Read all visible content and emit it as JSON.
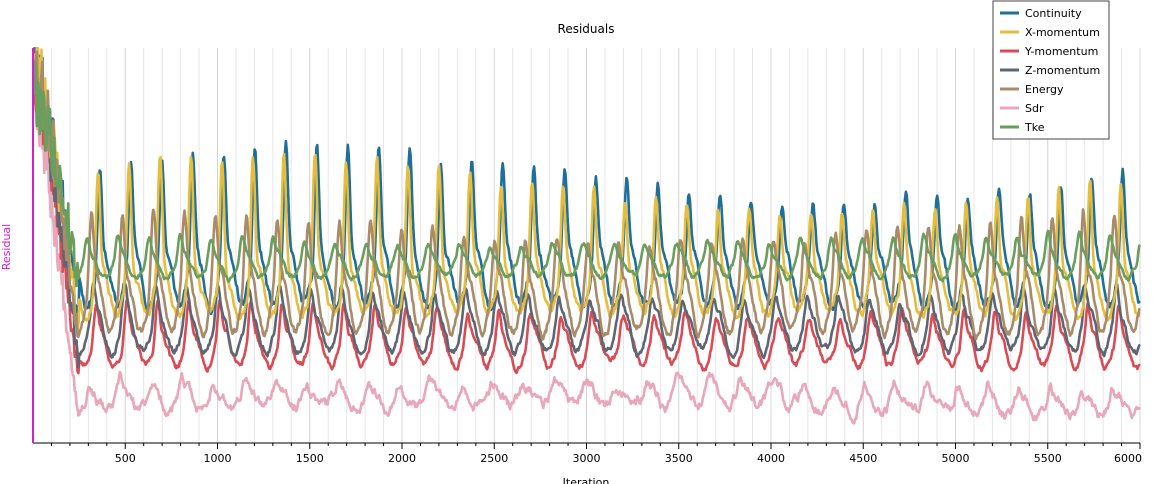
{
  "chart_data": {
    "type": "line",
    "title": "Residuals",
    "xlabel": "Iteration",
    "ylabel": "Residual",
    "xlim": [
      0,
      6000
    ],
    "x_ticks": [
      500,
      1000,
      1500,
      2000,
      2500,
      3000,
      3500,
      4000,
      4500,
      5000,
      5500,
      6000
    ],
    "ylim": [
      0,
      1
    ],
    "y_scale": "log",
    "grid": "vertical",
    "legend_position": "top-right",
    "colors": {
      "y_axis": "#d020d0",
      "grid": "#e6e6e6"
    },
    "series": [
      {
        "name": "Continuity",
        "color": "#1f6f99",
        "base": 0.42,
        "amp": 0.14,
        "pulse": 0.2,
        "drift": 0.0,
        "phase": 0.0,
        "noise": 0.025,
        "seed": 11,
        "start": 0.98,
        "head": [
          0.78,
          0.7,
          0.6,
          0.52,
          0.46,
          0.4,
          0.38,
          0.34,
          0.3
        ]
      },
      {
        "name": "X-momentum",
        "color": "#e6bd3c",
        "base": 0.38,
        "amp": 0.12,
        "pulse": 0.22,
        "drift": 0.01,
        "phase": 0.25,
        "noise": 0.025,
        "seed": 23,
        "start": 0.98,
        "head": [
          0.76,
          0.66,
          0.58,
          0.5,
          0.44,
          0.38,
          0.36,
          0.32,
          0.28
        ]
      },
      {
        "name": "Y-momentum",
        "color": "#d94c55",
        "base": 0.24,
        "amp": 0.09,
        "pulse": 0.06,
        "drift": 0.0,
        "phase": 0.55,
        "noise": 0.02,
        "seed": 37,
        "start": 0.95,
        "head": [
          0.6,
          0.5,
          0.4,
          0.32,
          0.26,
          0.22,
          0.2,
          0.18,
          0.16
        ]
      },
      {
        "name": "Z-momentum",
        "color": "#5f6673",
        "base": 0.28,
        "amp": 0.1,
        "pulse": 0.06,
        "drift": 0.0,
        "phase": 0.85,
        "noise": 0.02,
        "seed": 41,
        "start": 0.96,
        "head": [
          0.64,
          0.56,
          0.46,
          0.38,
          0.3,
          0.26,
          0.24,
          0.22,
          0.2
        ]
      },
      {
        "name": "Energy",
        "color": "#a88c6a",
        "base": 0.36,
        "amp": 0.16,
        "pulse": 0.12,
        "drift": 0.0,
        "phase": 1.15,
        "noise": 0.025,
        "seed": 53,
        "start": 0.97,
        "head": [
          0.74,
          0.64,
          0.56,
          0.48,
          0.42,
          0.36,
          0.34,
          0.3,
          0.27
        ]
      },
      {
        "name": "Sdr",
        "color": "#e8a7bb",
        "base": 0.1,
        "amp": 0.05,
        "pulse": 0.02,
        "drift": 0.02,
        "phase": 1.45,
        "noise": 0.03,
        "seed": 67,
        "start": 0.92,
        "head": [
          0.4,
          0.3,
          0.22,
          0.16,
          0.12,
          0.1,
          0.08,
          0.07,
          0.06
        ]
      },
      {
        "name": "Tke",
        "color": "#6a9e5c",
        "base": 0.45,
        "amp": 0.06,
        "pulse": 0.04,
        "drift": 0.0,
        "phase": 1.75,
        "noise": 0.015,
        "seed": 79,
        "start": 0.9,
        "head": [
          0.72,
          0.66,
          0.6,
          0.55,
          0.5,
          0.47,
          0.45,
          0.43,
          0.41
        ]
      }
    ]
  }
}
